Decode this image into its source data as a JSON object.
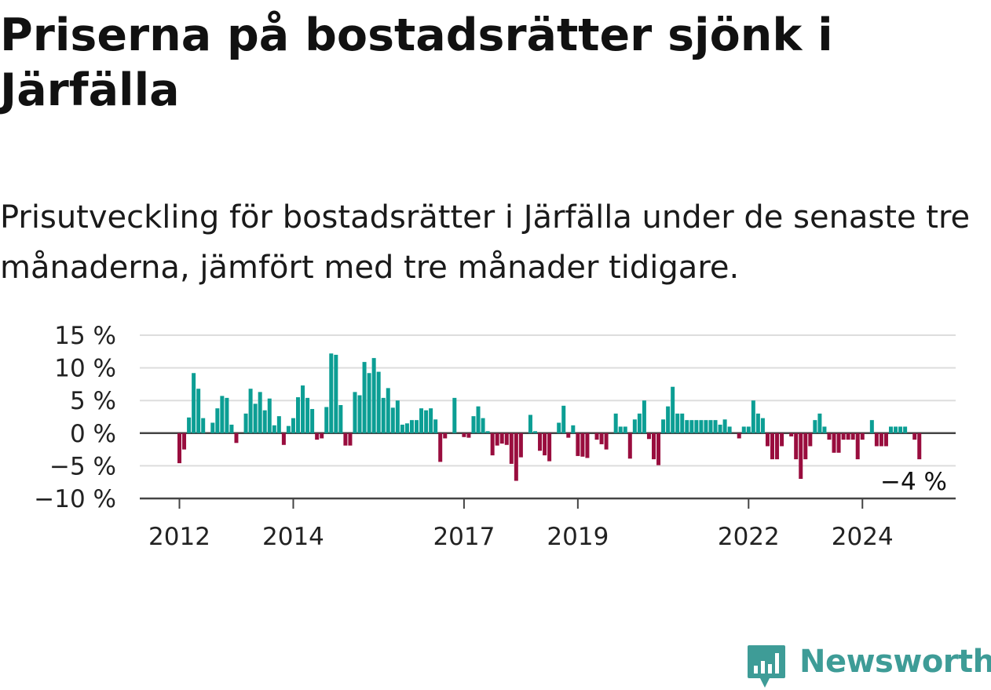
{
  "title": "Priserna på bostadsrätter sjönk i Järfälla",
  "subtitle": "Prisutveckling för bostadsrätter i Järfälla under de senaste tre månaderna, jämfört med tre månader tidigare.",
  "brand": {
    "name": "Newsworthy",
    "color": "#3e9c97",
    "icon": "bar-chart-speech-bubble-icon"
  },
  "chart_data": {
    "type": "bar",
    "x_start": "2012-01",
    "x_interval": "month",
    "ylim": [
      -10,
      15
    ],
    "y_ticks": [
      -10,
      -5,
      0,
      5,
      10,
      15
    ],
    "y_tick_labels": [
      "−10 %",
      "−5 %",
      "0 %",
      "5 %",
      "10 %",
      "15 %"
    ],
    "x_ticks": [
      {
        "label": "2012",
        "month_index": 0
      },
      {
        "label": "2014",
        "month_index": 24
      },
      {
        "label": "2017",
        "month_index": 60
      },
      {
        "label": "2019",
        "month_index": 84
      },
      {
        "label": "2022",
        "month_index": 120
      },
      {
        "label": "2024",
        "month_index": 144
      }
    ],
    "grid": true,
    "colors": {
      "positive": "#0c9e94",
      "negative": "#990d3e",
      "grid": "#dddddd",
      "axis": "#444444"
    },
    "last_value_label": "−4 %",
    "values": [
      -4.6,
      -2.5,
      2.4,
      9.2,
      6.8,
      2.3,
      0,
      1.6,
      3.8,
      5.7,
      5.4,
      1.3,
      -1.5,
      0,
      3,
      6.8,
      4.5,
      6.3,
      3.5,
      5.3,
      1.2,
      2.6,
      -1.8,
      1.1,
      2.3,
      5.5,
      7.3,
      5.4,
      3.7,
      -1,
      -0.8,
      4,
      12.2,
      12,
      4.3,
      -1.9,
      -1.9,
      6.3,
      5.8,
      10.9,
      9.2,
      11.5,
      9.4,
      5.4,
      6.9,
      3.9,
      5,
      1.3,
      1.5,
      2,
      2,
      3.8,
      3.5,
      3.8,
      2.1,
      -4.4,
      -0.8,
      0,
      5.4,
      0,
      -0.6,
      -0.7,
      2.6,
      4.1,
      2.3,
      0.3,
      -3.4,
      -1.9,
      -1.6,
      -1.8,
      -4.7,
      -7.3,
      -3.7,
      0,
      2.8,
      0.3,
      -2.7,
      -3.4,
      -4.3,
      0,
      1.6,
      4.2,
      -0.7,
      1.2,
      -3.5,
      -3.6,
      -3.8,
      0,
      -1,
      -1.7,
      -2.5,
      0,
      3,
      1,
      1,
      -3.9,
      2.1,
      3,
      5,
      -0.9,
      -4,
      -4.9,
      2.1,
      4.1,
      7.1,
      3,
      3,
      2,
      2,
      2,
      2,
      2,
      2,
      2,
      1.3,
      2.1,
      1,
      0,
      -0.8,
      1,
      1,
      5,
      3,
      2.3,
      -2,
      -4,
      -4,
      -2,
      0,
      -0.5,
      -4,
      -7,
      -4,
      -2,
      2,
      3,
      1,
      -1,
      -3,
      -3,
      -1,
      -1,
      -1,
      -4,
      -1,
      0,
      2,
      -2,
      -2,
      -2,
      1,
      1,
      1,
      1,
      0,
      -1,
      -4
    ]
  }
}
